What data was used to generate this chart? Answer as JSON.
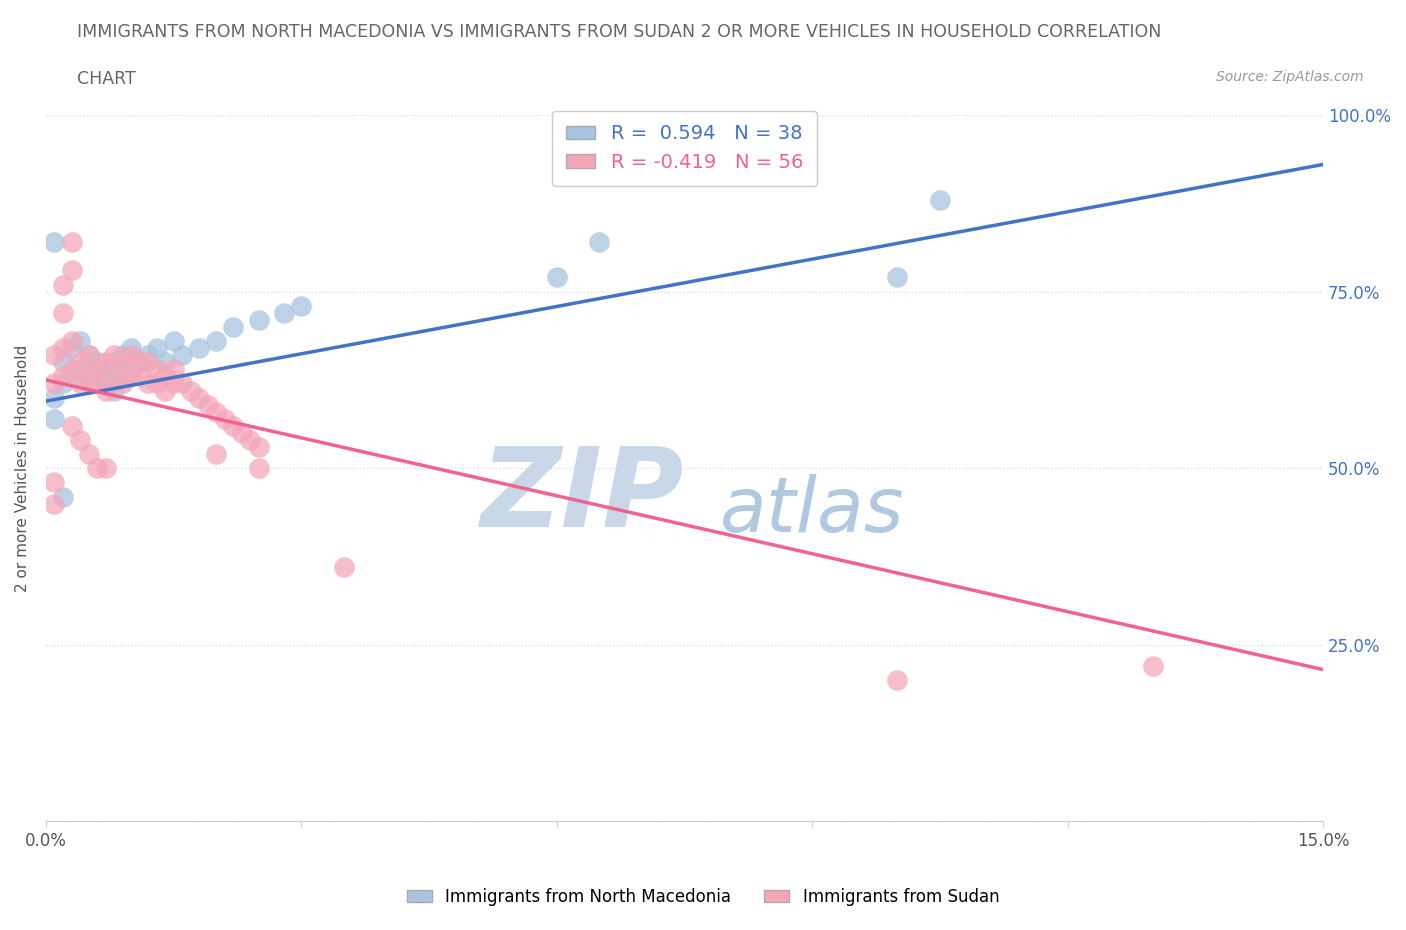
{
  "title_line1": "IMMIGRANTS FROM NORTH MACEDONIA VS IMMIGRANTS FROM SUDAN 2 OR MORE VEHICLES IN HOUSEHOLD CORRELATION",
  "title_line2": "CHART",
  "source": "Source: ZipAtlas.com",
  "ylabel": "2 or more Vehicles in Household",
  "xlim": [
    0.0,
    0.15
  ],
  "ylim": [
    0.0,
    1.0
  ],
  "blue_R": 0.594,
  "blue_N": 38,
  "pink_R": -0.419,
  "pink_N": 56,
  "blue_color": "#a8c4e0",
  "pink_color": "#f4a7b9",
  "blue_line_color": "#4472c4",
  "pink_line_color": "#f06292",
  "watermark_zip": "ZIP",
  "watermark_atlas": "atlas",
  "watermark_color_zip": "#c8d8e8",
  "watermark_color_atlas": "#b0c8e0",
  "legend_label_blue": "Immigrants from North Macedonia",
  "legend_label_pink": "Immigrants from Sudan",
  "background_color": "#ffffff",
  "grid_color": "#dddddd",
  "blue_line_x0": 0.0,
  "blue_line_y0": 0.595,
  "blue_line_x1": 0.15,
  "blue_line_y1": 0.93,
  "pink_line_x0": 0.0,
  "pink_line_y0": 0.625,
  "pink_line_x1": 0.15,
  "pink_line_y1": 0.215,
  "blue_scatter_x": [
    0.001,
    0.002,
    0.002,
    0.003,
    0.003,
    0.004,
    0.004,
    0.005,
    0.005,
    0.006,
    0.006,
    0.007,
    0.007,
    0.008,
    0.008,
    0.009,
    0.009,
    0.01,
    0.01,
    0.011,
    0.012,
    0.013,
    0.014,
    0.015,
    0.016,
    0.018,
    0.02,
    0.022,
    0.025,
    0.028,
    0.03,
    0.06,
    0.065,
    0.1,
    0.105,
    0.002,
    0.001,
    0.001
  ],
  "blue_scatter_y": [
    0.6,
    0.62,
    0.65,
    0.63,
    0.67,
    0.64,
    0.68,
    0.62,
    0.66,
    0.63,
    0.65,
    0.62,
    0.64,
    0.61,
    0.65,
    0.63,
    0.66,
    0.64,
    0.67,
    0.65,
    0.66,
    0.67,
    0.65,
    0.68,
    0.66,
    0.67,
    0.68,
    0.7,
    0.71,
    0.72,
    0.73,
    0.77,
    0.82,
    0.77,
    0.88,
    0.46,
    0.57,
    0.82
  ],
  "pink_scatter_x": [
    0.001,
    0.001,
    0.002,
    0.002,
    0.003,
    0.003,
    0.004,
    0.004,
    0.005,
    0.005,
    0.006,
    0.006,
    0.007,
    0.007,
    0.008,
    0.008,
    0.009,
    0.009,
    0.01,
    0.01,
    0.011,
    0.011,
    0.012,
    0.012,
    0.013,
    0.013,
    0.014,
    0.014,
    0.015,
    0.015,
    0.016,
    0.017,
    0.018,
    0.019,
    0.02,
    0.021,
    0.022,
    0.023,
    0.024,
    0.025,
    0.003,
    0.02,
    0.025,
    0.002,
    0.002,
    0.003,
    0.035,
    0.003,
    0.004,
    0.005,
    0.006,
    0.007,
    0.1,
    0.13,
    0.001,
    0.001
  ],
  "pink_scatter_y": [
    0.62,
    0.66,
    0.63,
    0.67,
    0.64,
    0.68,
    0.62,
    0.65,
    0.63,
    0.66,
    0.62,
    0.64,
    0.61,
    0.65,
    0.63,
    0.66,
    0.62,
    0.65,
    0.63,
    0.66,
    0.63,
    0.65,
    0.62,
    0.65,
    0.62,
    0.64,
    0.61,
    0.63,
    0.62,
    0.64,
    0.62,
    0.61,
    0.6,
    0.59,
    0.58,
    0.57,
    0.56,
    0.55,
    0.54,
    0.53,
    0.82,
    0.52,
    0.5,
    0.72,
    0.76,
    0.78,
    0.36,
    0.56,
    0.54,
    0.52,
    0.5,
    0.5,
    0.2,
    0.22,
    0.45,
    0.48
  ]
}
